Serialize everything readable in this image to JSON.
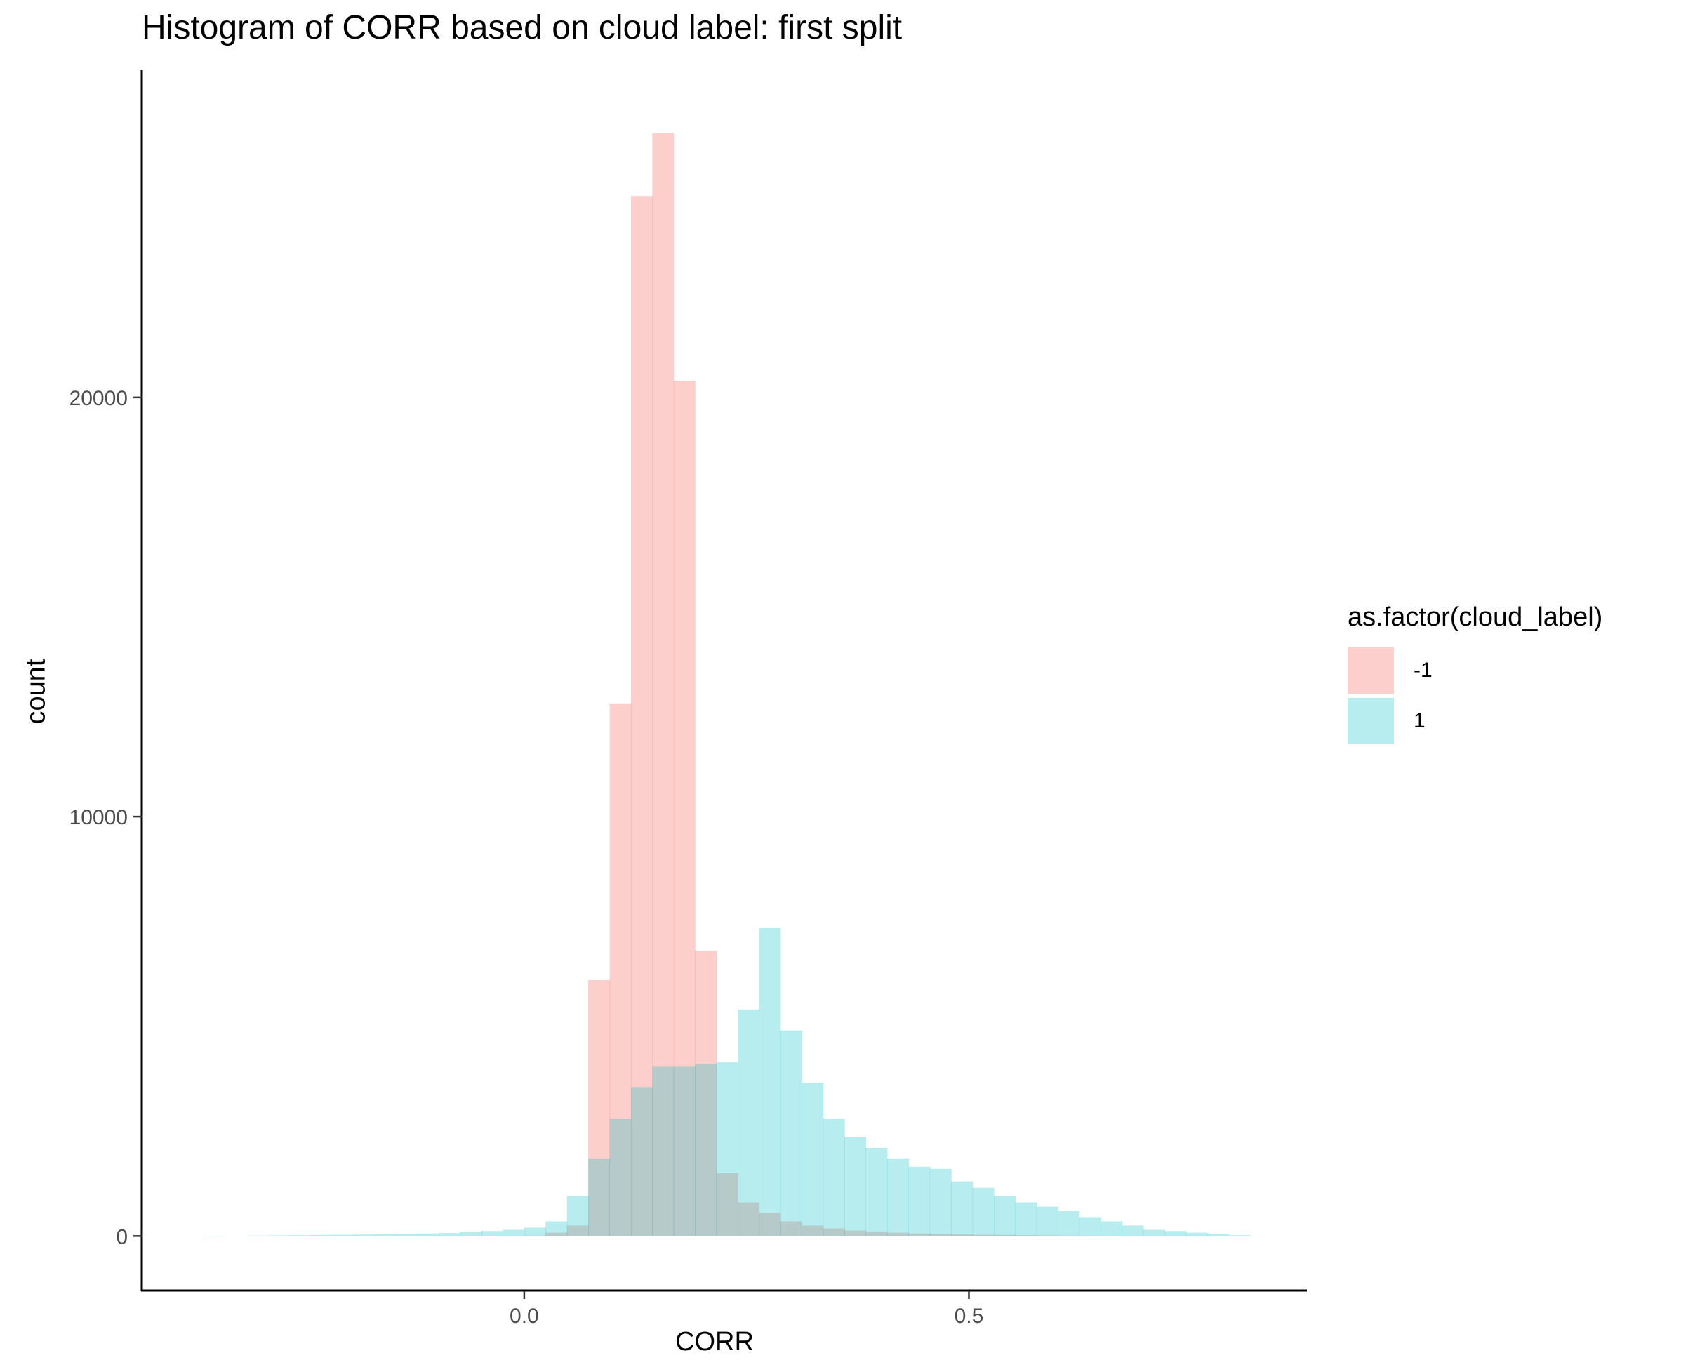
{
  "chart_data": {
    "type": "bar",
    "title": "Histogram of CORR based on cloud label: first split",
    "xlabel": "CORR",
    "ylabel": "count",
    "xlim": [
      -0.43,
      0.88
    ],
    "ylim": [
      -1300,
      27800
    ],
    "xticks": [
      {
        "value": 0.0,
        "label": "0.0"
      },
      {
        "value": 0.5,
        "label": "0.5"
      }
    ],
    "yticks": [
      {
        "value": 0,
        "label": "0"
      },
      {
        "value": 10000,
        "label": "10000"
      },
      {
        "value": 20000,
        "label": "20000"
      }
    ],
    "binwidth": 0.024,
    "grid": false,
    "legend": {
      "title": "as.factor(cloud_label)",
      "position": "right"
    },
    "series": [
      {
        "name": "-1",
        "color": "#F8766D",
        "opacity": 0.35,
        "bins": [
          [
            0.012,
            10
          ],
          [
            0.036,
            80
          ],
          [
            0.06,
            250
          ],
          [
            0.084,
            6100
          ],
          [
            0.108,
            12700
          ],
          [
            0.132,
            24800
          ],
          [
            0.156,
            26300
          ],
          [
            0.18,
            20400
          ],
          [
            0.204,
            6800
          ],
          [
            0.228,
            1500
          ],
          [
            0.252,
            800
          ],
          [
            0.276,
            550
          ],
          [
            0.3,
            350
          ],
          [
            0.324,
            250
          ],
          [
            0.348,
            180
          ],
          [
            0.372,
            130
          ],
          [
            0.396,
            100
          ],
          [
            0.42,
            80
          ],
          [
            0.444,
            60
          ],
          [
            0.468,
            50
          ],
          [
            0.492,
            40
          ],
          [
            0.516,
            30
          ],
          [
            0.54,
            25
          ],
          [
            0.564,
            20
          ],
          [
            0.588,
            15
          ],
          [
            0.612,
            10
          ],
          [
            0.636,
            8
          ],
          [
            0.66,
            5
          ]
        ]
      },
      {
        "name": "1",
        "color": "#00BFC4",
        "opacity": 0.28,
        "bins": [
          [
            -0.348,
            5
          ],
          [
            -0.3,
            10
          ],
          [
            -0.276,
            15
          ],
          [
            -0.252,
            20
          ],
          [
            -0.228,
            25
          ],
          [
            -0.204,
            30
          ],
          [
            -0.18,
            35
          ],
          [
            -0.156,
            40
          ],
          [
            -0.132,
            50
          ],
          [
            -0.108,
            60
          ],
          [
            -0.084,
            70
          ],
          [
            -0.06,
            90
          ],
          [
            -0.036,
            120
          ],
          [
            -0.012,
            150
          ],
          [
            0.012,
            200
          ],
          [
            0.036,
            350
          ],
          [
            0.06,
            950
          ],
          [
            0.084,
            1850
          ],
          [
            0.108,
            2800
          ],
          [
            0.132,
            3550
          ],
          [
            0.156,
            4050
          ],
          [
            0.18,
            4050
          ],
          [
            0.204,
            4100
          ],
          [
            0.228,
            4150
          ],
          [
            0.252,
            5400
          ],
          [
            0.276,
            7350
          ],
          [
            0.3,
            4900
          ],
          [
            0.324,
            3650
          ],
          [
            0.348,
            2800
          ],
          [
            0.372,
            2350
          ],
          [
            0.396,
            2100
          ],
          [
            0.42,
            1850
          ],
          [
            0.444,
            1650
          ],
          [
            0.468,
            1600
          ],
          [
            0.492,
            1300
          ],
          [
            0.516,
            1150
          ],
          [
            0.54,
            950
          ],
          [
            0.564,
            800
          ],
          [
            0.588,
            700
          ],
          [
            0.612,
            600
          ],
          [
            0.636,
            450
          ],
          [
            0.66,
            350
          ],
          [
            0.684,
            250
          ],
          [
            0.708,
            150
          ],
          [
            0.732,
            120
          ],
          [
            0.756,
            80
          ],
          [
            0.78,
            50
          ],
          [
            0.804,
            20
          ]
        ]
      }
    ]
  }
}
